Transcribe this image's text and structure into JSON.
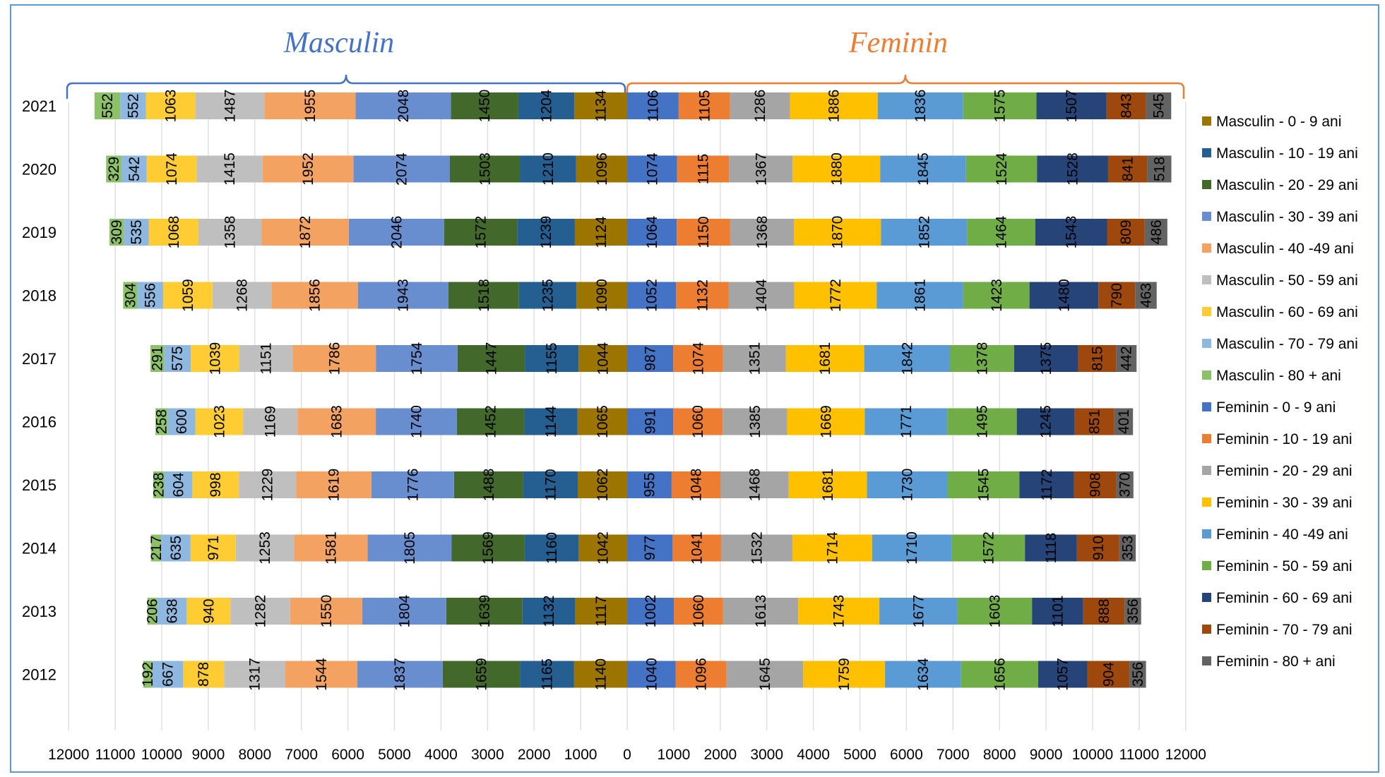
{
  "chart_data": {
    "type": "bar",
    "orientation": "horizontal-stacked-diverging",
    "groups": [
      {
        "name": "Masculin",
        "color": "#4472c4",
        "side": "left"
      },
      {
        "name": "Feminin",
        "color": "#ed7d31",
        "side": "right"
      }
    ],
    "categories": [
      "2021",
      "2020",
      "2019",
      "2018",
      "2017",
      "2016",
      "2015",
      "2014",
      "2013",
      "2012"
    ],
    "xlim": [
      -12000,
      12000
    ],
    "xticks": [
      "12000",
      "11000",
      "10000",
      "9000",
      "8000",
      "7000",
      "6000",
      "5000",
      "4000",
      "3000",
      "2000",
      "1000",
      "0",
      "1000",
      "2000",
      "3000",
      "4000",
      "5000",
      "6000",
      "7000",
      "8000",
      "9000",
      "10000",
      "11000",
      "12000"
    ],
    "grid": true,
    "legend_position": "right",
    "series": [
      {
        "name": "Masculin - 0 - 9 ani",
        "side": "left",
        "color": "#9c7400",
        "values": [
          1134,
          1096,
          1124,
          1090,
          1044,
          1065,
          1062,
          1042,
          1117,
          1140
        ]
      },
      {
        "name": "Masculin - 10 - 19 ani",
        "side": "left",
        "color": "#255e91",
        "values": [
          1204,
          1210,
          1239,
          1235,
          1155,
          1144,
          1170,
          1160,
          1132,
          1165
        ]
      },
      {
        "name": "Masculin - 20 - 29 ani",
        "side": "left",
        "color": "#43682b",
        "values": [
          1450,
          1503,
          1572,
          1518,
          1447,
          1452,
          1488,
          1569,
          1639,
          1659
        ]
      },
      {
        "name": "Masculin - 30 - 39 ani",
        "side": "left",
        "color": "#698ed0",
        "values": [
          2048,
          2074,
          2046,
          1943,
          1754,
          1740,
          1776,
          1805,
          1804,
          1837
        ]
      },
      {
        "name": "Masculin - 40 -49 ani",
        "side": "left",
        "color": "#f4a261",
        "values": [
          1955,
          1952,
          1872,
          1856,
          1786,
          1683,
          1619,
          1581,
          1550,
          1544
        ]
      },
      {
        "name": "Masculin - 50 - 59 ani",
        "side": "left",
        "color": "#bfbfbf",
        "values": [
          1487,
          1415,
          1358,
          1268,
          1151,
          1169,
          1229,
          1253,
          1282,
          1317
        ]
      },
      {
        "name": "Masculin - 60 - 69 ani",
        "side": "left",
        "color": "#ffcd33",
        "values": [
          1063,
          1074,
          1068,
          1059,
          1039,
          1023,
          998,
          971,
          940,
          878
        ]
      },
      {
        "name": "Masculin - 70 - 79 ani",
        "side": "left",
        "color": "#8fb8e0",
        "values": [
          552,
          542,
          535,
          556,
          575,
          600,
          604,
          635,
          638,
          667
        ]
      },
      {
        "name": "Masculin - 80 + ani",
        "side": "left",
        "color": "#8cc168",
        "values": [
          552,
          329,
          309,
          304,
          291,
          258,
          238,
          217,
          206,
          192
        ]
      },
      {
        "name": "Feminin - 0 - 9 ani",
        "side": "right",
        "color": "#4472c4",
        "values": [
          1106,
          1074,
          1064,
          1052,
          987,
          991,
          955,
          977,
          1002,
          1040
        ]
      },
      {
        "name": "Feminin - 10 - 19 ani",
        "side": "right",
        "color": "#ed7d31",
        "values": [
          1105,
          1115,
          1150,
          1132,
          1074,
          1060,
          1048,
          1041,
          1060,
          1096
        ]
      },
      {
        "name": "Feminin - 20 - 29 ani",
        "side": "right",
        "color": "#a5a5a5",
        "values": [
          1286,
          1367,
          1368,
          1404,
          1351,
          1385,
          1468,
          1532,
          1613,
          1645
        ]
      },
      {
        "name": "Feminin - 30 - 39 ani",
        "side": "right",
        "color": "#ffc000",
        "values": [
          1886,
          1880,
          1870,
          1772,
          1681,
          1669,
          1681,
          1714,
          1743,
          1759
        ]
      },
      {
        "name": "Feminin - 40 -49 ani",
        "side": "right",
        "color": "#5b9bd5",
        "values": [
          1836,
          1845,
          1852,
          1861,
          1842,
          1771,
          1730,
          1710,
          1677,
          1634
        ]
      },
      {
        "name": "Feminin - 50 - 59 ani",
        "side": "right",
        "color": "#70ad47",
        "values": [
          1575,
          1524,
          1464,
          1423,
          1378,
          1495,
          1545,
          1572,
          1603,
          1656
        ]
      },
      {
        "name": "Feminin - 60 - 69 ani",
        "side": "right",
        "color": "#264478",
        "values": [
          1507,
          1528,
          1543,
          1480,
          1375,
          1245,
          1172,
          1118,
          1101,
          1057
        ]
      },
      {
        "name": "Feminin - 70 - 79 ani",
        "side": "right",
        "color": "#9e480e",
        "values": [
          843,
          841,
          809,
          790,
          815,
          851,
          908,
          910,
          888,
          904
        ]
      },
      {
        "name": "Feminin - 80 + ani",
        "side": "right",
        "color": "#636363",
        "values": [
          545,
          518,
          486,
          463,
          442,
          401,
          370,
          353,
          356,
          356
        ]
      }
    ]
  }
}
